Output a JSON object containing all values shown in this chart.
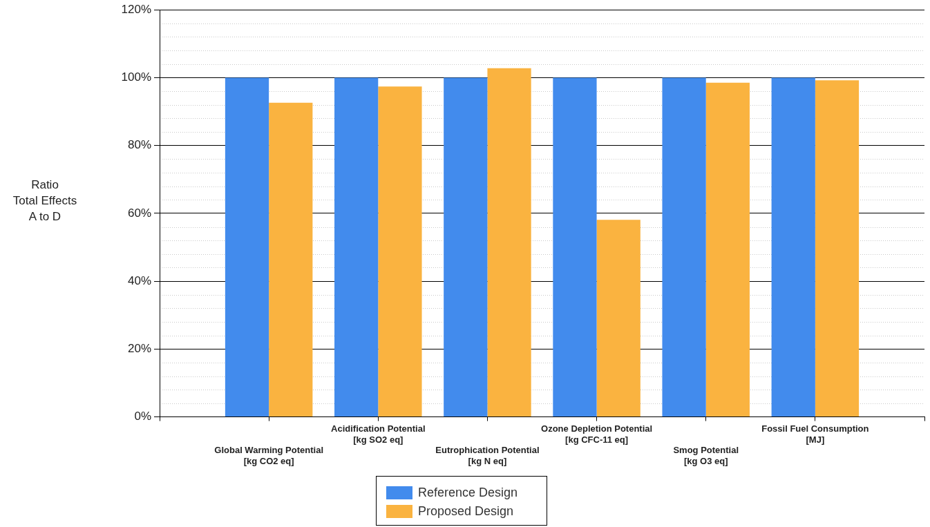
{
  "chart_data": {
    "type": "bar",
    "ylabel": "Ratio\nTotal Effects\nA to D",
    "categories": [
      "Global Warming Potential\n[kg CO2 eq]",
      "Acidification Potential\n[kg SO2 eq]",
      "Eutrophication Potential\n[kg N eq]",
      "Ozone Depletion Potential\n[kg CFC-11 eq]",
      "Smog Potential\n[kg O3 eq]",
      "Fossil Fuel Consumption\n[MJ]"
    ],
    "series": [
      {
        "name": "Reference Design",
        "color": "#428bed",
        "values": [
          100,
          100,
          100,
          100,
          100,
          100
        ]
      },
      {
        "name": "Proposed Design",
        "color": "#fab340",
        "values": [
          92.6,
          97.4,
          102.8,
          58.1,
          98.5,
          99.2
        ]
      }
    ],
    "ylim": [
      0,
      120
    ],
    "yticks": [
      {
        "value": 0,
        "label": "0%"
      },
      {
        "value": 20,
        "label": "20%"
      },
      {
        "value": 40,
        "label": "40%"
      },
      {
        "value": 60,
        "label": "60%"
      },
      {
        "value": 80,
        "label": "80%"
      },
      {
        "value": 100,
        "label": "100%"
      },
      {
        "value": 120,
        "label": "120%"
      }
    ],
    "grid": "y",
    "legend": "bottom"
  }
}
